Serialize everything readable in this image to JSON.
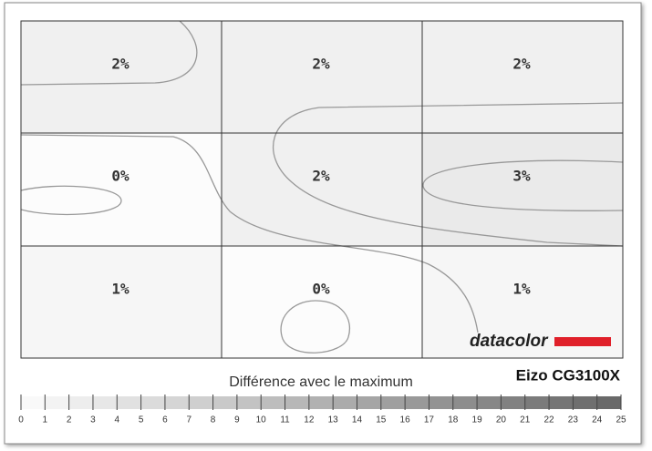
{
  "chart_data": {
    "type": "heatmap",
    "values": [
      [
        2,
        2,
        2
      ],
      [
        0,
        2,
        3
      ],
      [
        1,
        0,
        1
      ]
    ],
    "value_labels": [
      [
        "2%",
        "2%",
        "2%"
      ],
      [
        "0%",
        "2%",
        "3%"
      ],
      [
        "1%",
        "0%",
        "1%"
      ]
    ],
    "legend_title": "Différence avec le maximum",
    "clim": [
      0,
      25
    ],
    "scale_ticks": [
      0,
      1,
      2,
      3,
      4,
      5,
      6,
      7,
      8,
      9,
      10,
      11,
      12,
      13,
      14,
      15,
      16,
      17,
      18,
      19,
      20,
      21,
      22,
      23,
      24,
      25
    ],
    "annotation": "Eizo CG3100X",
    "logo": "datacolor"
  }
}
